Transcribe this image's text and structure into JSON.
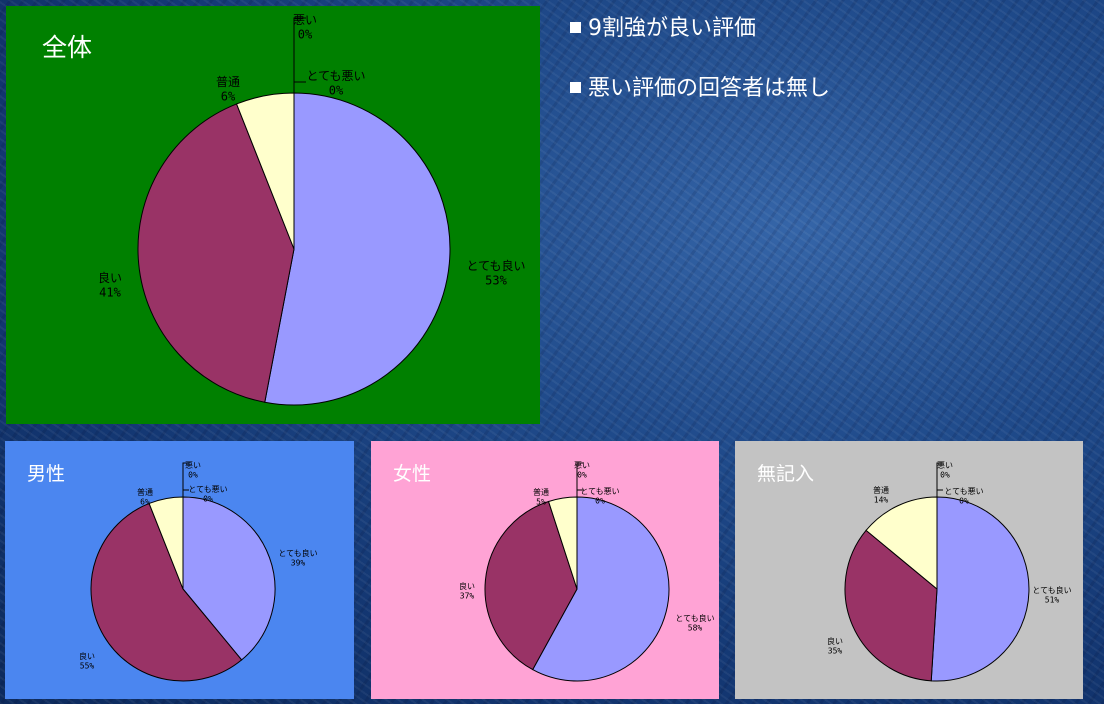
{
  "slide": {
    "bullets": [
      "9割強が良い評価",
      "悪い評価の回答者は無し"
    ]
  },
  "chart_data": [
    {
      "type": "pie",
      "title": "全体",
      "slices": [
        {
          "label": "とても良い",
          "value": 53,
          "value_label": "53%",
          "color": "#9999ff"
        },
        {
          "label": "良い",
          "value": 41,
          "value_label": "41%",
          "color": "#993366"
        },
        {
          "label": "普通",
          "value": 6,
          "value_label": "6%",
          "color": "#ffffcc"
        },
        {
          "label": "悪い",
          "value": 0,
          "value_label": "0%",
          "color": "#ccffff"
        },
        {
          "label": "とても悪い",
          "value": 0,
          "value_label": "0%",
          "color": "#660066"
        }
      ]
    },
    {
      "type": "pie",
      "title": "男性",
      "slices": [
        {
          "label": "とても良い",
          "value": 39,
          "value_label": "39%",
          "color": "#9999ff"
        },
        {
          "label": "良い",
          "value": 55,
          "value_label": "55%",
          "color": "#993366"
        },
        {
          "label": "普通",
          "value": 6,
          "value_label": "6%",
          "color": "#ffffcc"
        },
        {
          "label": "悪い",
          "value": 0,
          "value_label": "0%",
          "color": "#ccffff"
        },
        {
          "label": "とても悪い",
          "value": 0,
          "value_label": "0%",
          "color": "#660066"
        }
      ]
    },
    {
      "type": "pie",
      "title": "女性",
      "slices": [
        {
          "label": "とても良い",
          "value": 58,
          "value_label": "58%",
          "color": "#9999ff"
        },
        {
          "label": "良い",
          "value": 37,
          "value_label": "37%",
          "color": "#993366"
        },
        {
          "label": "普通",
          "value": 5,
          "value_label": "5%",
          "color": "#ffffcc"
        },
        {
          "label": "悪い",
          "value": 0,
          "value_label": "0%",
          "color": "#ccffff"
        },
        {
          "label": "とても悪い",
          "value": 0,
          "value_label": "0%",
          "color": "#660066"
        }
      ]
    },
    {
      "type": "pie",
      "title": "無記入",
      "slices": [
        {
          "label": "とても良い",
          "value": 51,
          "value_label": "51%",
          "color": "#9999ff"
        },
        {
          "label": "良い",
          "value": 35,
          "value_label": "35%",
          "color": "#993366"
        },
        {
          "label": "普通",
          "value": 14,
          "value_label": "14%",
          "color": "#ffffcc"
        },
        {
          "label": "悪い",
          "value": 0,
          "value_label": "0%",
          "color": "#ccffff"
        },
        {
          "label": "とても悪い",
          "value": 0,
          "value_label": "0%",
          "color": "#660066"
        }
      ]
    }
  ]
}
